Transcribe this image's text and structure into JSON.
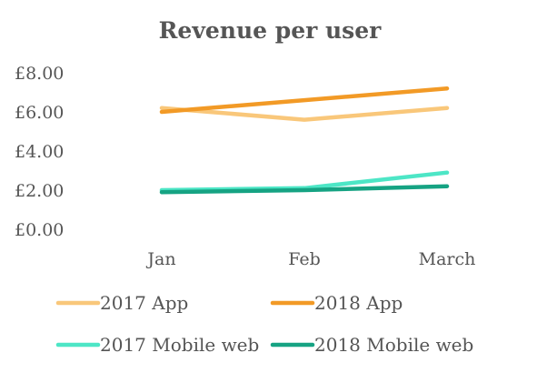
{
  "chart_data": {
    "type": "line",
    "title": "Revenue per user",
    "xlabel": "",
    "ylabel": "",
    "categories": [
      "Jan",
      "Feb",
      "March"
    ],
    "ylim": [
      0,
      8
    ],
    "yticks": [
      "£0.00",
      "£2.00",
      "£4.00",
      "£6.00",
      "£8.00"
    ],
    "grid": false,
    "legend": "bottom",
    "series": [
      {
        "name": "2017 App",
        "values": [
          6.2,
          5.6,
          6.2
        ],
        "color": "#F9C77A"
      },
      {
        "name": "2018 App",
        "values": [
          6.0,
          6.6,
          7.2
        ],
        "color": "#F29A26"
      },
      {
        "name": "2017 Mobile web",
        "values": [
          2.0,
          2.1,
          2.9
        ],
        "color": "#4DE6C6"
      },
      {
        "name": "2018 Mobile web",
        "values": [
          1.9,
          2.0,
          2.2
        ],
        "color": "#16A383"
      }
    ]
  }
}
